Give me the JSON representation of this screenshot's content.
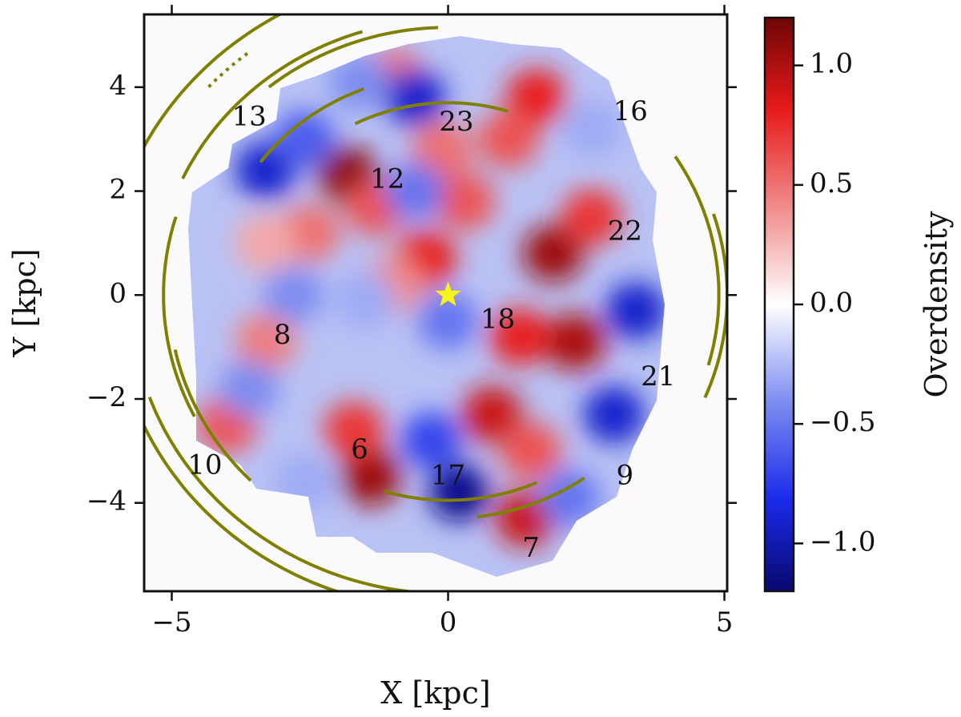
{
  "chart_data": {
    "type": "heatmap",
    "title": "",
    "xlabel": "X [kpc]",
    "ylabel": "Y [kpc]",
    "xlim": [
      -5.5,
      5.05
    ],
    "ylim": [
      -5.7,
      5.4
    ],
    "xticks": [
      {
        "value": -5,
        "label": "−5"
      },
      {
        "value": 0,
        "label": "0"
      },
      {
        "value": 5,
        "label": "5"
      }
    ],
    "yticks": [
      {
        "value": 4,
        "label": "4"
      },
      {
        "value": 2,
        "label": "2"
      },
      {
        "value": 0,
        "label": "0"
      },
      {
        "value": -2,
        "label": "−2"
      },
      {
        "value": -4,
        "label": "−4"
      }
    ],
    "colorbar": {
      "label": "Overdensity",
      "range": [
        -1.2,
        1.2
      ],
      "ticks": [
        {
          "value": 1.0,
          "label": "1.0"
        },
        {
          "value": 0.5,
          "label": "0.5"
        },
        {
          "value": 0.0,
          "label": "0.0"
        },
        {
          "value": -0.5,
          "label": "−0.5"
        },
        {
          "value": -1.0,
          "label": "−1.0"
        }
      ],
      "colors": [
        "#08086e",
        "#1b2bea",
        "#7d8df0",
        "#ffffff",
        "#f08b8b",
        "#e81a1a",
        "#6e0606"
      ]
    },
    "density_blobs": [
      {
        "x": -1.8,
        "y": 2.3,
        "value": 1.1
      },
      {
        "x": -1.3,
        "y": 1.7,
        "value": 0.6
      },
      {
        "x": -2.5,
        "y": 1.2,
        "value": 0.5
      },
      {
        "x": -3.3,
        "y": 1.0,
        "value": 0.3
      },
      {
        "x": 1.9,
        "y": 0.8,
        "value": 1.05
      },
      {
        "x": 2.6,
        "y": 1.5,
        "value": 0.7
      },
      {
        "x": 2.3,
        "y": -0.9,
        "value": 1.0
      },
      {
        "x": 1.3,
        "y": -0.8,
        "value": 0.8
      },
      {
        "x": 0.8,
        "y": -2.3,
        "value": 0.9
      },
      {
        "x": 1.5,
        "y": -3.0,
        "value": 0.6
      },
      {
        "x": -1.4,
        "y": -3.5,
        "value": 1.05
      },
      {
        "x": -1.7,
        "y": -2.6,
        "value": 0.7
      },
      {
        "x": 1.4,
        "y": -4.3,
        "value": 0.9
      },
      {
        "x": 1.6,
        "y": 3.8,
        "value": 0.8
      },
      {
        "x": 1.1,
        "y": 3.0,
        "value": 0.6
      },
      {
        "x": -0.1,
        "y": 2.8,
        "value": 0.5
      },
      {
        "x": 0.3,
        "y": 1.8,
        "value": 0.6
      },
      {
        "x": -0.4,
        "y": 0.7,
        "value": 0.8
      },
      {
        "x": -1.0,
        "y": 0.2,
        "value": 0.4
      },
      {
        "x": -3.3,
        "y": -0.9,
        "value": 0.45
      },
      {
        "x": -4.0,
        "y": -2.5,
        "value": 0.6
      },
      {
        "x": -1.0,
        "y": 4.2,
        "value": 0.5
      },
      {
        "x": -3.3,
        "y": 2.4,
        "value": -0.9
      },
      {
        "x": -2.6,
        "y": 3.0,
        "value": -0.6
      },
      {
        "x": -0.6,
        "y": 3.8,
        "value": -0.9
      },
      {
        "x": -0.6,
        "y": 2.0,
        "value": -0.5
      },
      {
        "x": 2.6,
        "y": 3.2,
        "value": -0.3
      },
      {
        "x": 3.4,
        "y": -0.3,
        "value": -0.9
      },
      {
        "x": 3.0,
        "y": -2.3,
        "value": -0.9
      },
      {
        "x": 0.2,
        "y": -3.8,
        "value": -1.1
      },
      {
        "x": -0.3,
        "y": -2.8,
        "value": -0.7
      },
      {
        "x": 0.0,
        "y": -0.5,
        "value": -0.5
      },
      {
        "x": -1.5,
        "y": -0.1,
        "value": -0.3
      },
      {
        "x": -2.8,
        "y": 0.0,
        "value": -0.4
      },
      {
        "x": -3.6,
        "y": -1.8,
        "value": -0.4
      },
      {
        "x": 2.2,
        "y": -3.9,
        "value": -0.5
      },
      {
        "x": -2.6,
        "y": -3.6,
        "value": -0.3
      },
      {
        "x": -1.6,
        "y": 4.1,
        "value": -0.4
      }
    ],
    "spiral_arms": [
      {
        "label": "13",
        "r": 6.2,
        "theta_start": 98,
        "theta_end": 174,
        "label_pos": [
          -3.6,
          3.4
        ],
        "style": "solid"
      },
      {
        "label": "12",
        "r": 5.3,
        "theta_start": 107,
        "theta_end": 155,
        "label_pos": [
          -1.1,
          2.2
        ],
        "style": "solid"
      },
      {
        "label": "23",
        "r": 4.25,
        "theta_start": 111,
        "theta_end": 143,
        "label_pos": [
          0.15,
          3.3
        ],
        "style": "solid"
      },
      {
        "label": "16",
        "r": 5.15,
        "theta_start": 92,
        "theta_end": 129,
        "label_pos": [
          3.3,
          3.5
        ],
        "style": "solid"
      },
      {
        "label": "22",
        "r": 3.7,
        "theta_start": 73,
        "theta_end": 117,
        "label_pos": [
          3.2,
          1.2
        ],
        "style": "solid"
      },
      {
        "label": "18",
        "r": 5.15,
        "theta_start": 163,
        "theta_end": 207,
        "label_pos": [
          0.9,
          -0.5
        ],
        "style": "solid"
      },
      {
        "label": "21",
        "r": 5.05,
        "theta_start": -23,
        "theta_end": 18,
        "label_pos": [
          3.8,
          -1.6
        ],
        "style": "solid"
      },
      {
        "label": "9",
        "r": 4.9,
        "theta_start": -16,
        "theta_end": 33,
        "label_pos": [
          3.2,
          -3.5
        ],
        "style": "solid"
      },
      {
        "label": "8",
        "r": 5.05,
        "theta_start": 192,
        "theta_end": 225,
        "label_pos": [
          -3.0,
          -0.8
        ],
        "style": "solid"
      },
      {
        "label": "6",
        "r": 6.05,
        "theta_start": 202,
        "theta_end": 256,
        "label_pos": [
          -1.6,
          -3.0
        ],
        "style": "solid"
      },
      {
        "label": "10",
        "r": 5.75,
        "theta_start": 200,
        "theta_end": 266,
        "label_pos": [
          -4.4,
          -3.3
        ],
        "style": "solid"
      },
      {
        "label": "17",
        "r": 3.95,
        "theta_start": 253,
        "theta_end": 294,
        "label_pos": [
          0.0,
          -3.5
        ],
        "style": "solid"
      },
      {
        "label": "7",
        "r": 4.3,
        "theta_start": 277,
        "theta_end": 305,
        "label_pos": [
          1.5,
          -4.9
        ],
        "style": "solid"
      },
      {
        "label": "",
        "r": 5.9,
        "theta_start": 128,
        "theta_end": 138,
        "label_pos": null,
        "style": "dotted"
      }
    ],
    "sun": {
      "x": 0,
      "y": 0,
      "color": "#f5f51a"
    },
    "arm_color": "#808000"
  }
}
